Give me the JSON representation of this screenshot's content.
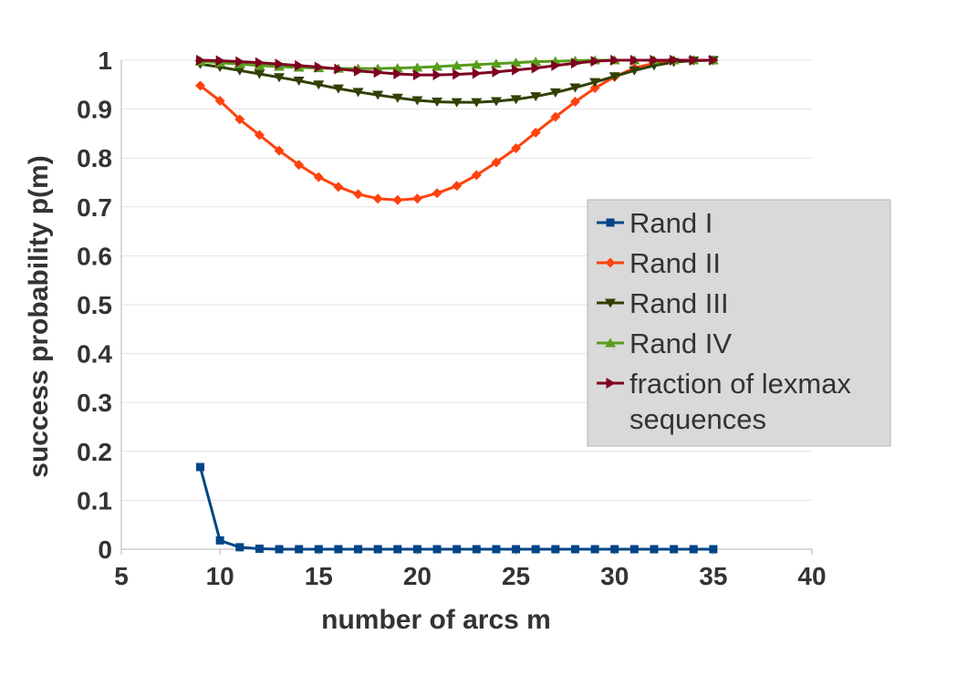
{
  "chart_data": {
    "type": "line",
    "xlabel": "number of arcs m",
    "ylabel": "success probability p(m)",
    "xlim": [
      5,
      40
    ],
    "ylim": [
      0,
      1
    ],
    "xticks": [
      5,
      10,
      15,
      20,
      25,
      30,
      35,
      40
    ],
    "yticks": [
      0,
      0.1,
      0.2,
      0.3,
      0.4,
      0.5,
      0.6,
      0.7,
      0.8,
      0.9,
      1
    ],
    "ytick_labels": [
      "0",
      "0.1",
      "0.2",
      "0.3",
      "0.4",
      "0.5",
      "0.6",
      "0.7",
      "0.8",
      "0.9",
      "1"
    ],
    "grid": true,
    "legend_position": "right",
    "x": [
      9,
      10,
      11,
      12,
      13,
      14,
      15,
      16,
      17,
      18,
      19,
      20,
      21,
      22,
      23,
      24,
      25,
      26,
      27,
      28,
      29,
      30,
      31,
      32,
      33,
      34,
      35
    ],
    "series": [
      {
        "name": "Rand I",
        "color": "#004586",
        "marker": "square",
        "values": [
          0.168,
          0.018,
          0.004,
          0.001,
          0,
          0,
          0,
          0,
          0,
          0,
          0,
          0,
          0,
          0,
          0,
          0,
          0,
          0,
          0,
          0,
          0,
          0,
          0,
          0,
          0,
          0,
          0
        ]
      },
      {
        "name": "Rand II",
        "color": "#ff420e",
        "marker": "diamond",
        "values": [
          0.948,
          0.917,
          0.879,
          0.847,
          0.815,
          0.786,
          0.761,
          0.741,
          0.726,
          0.717,
          0.714,
          0.717,
          0.728,
          0.743,
          0.765,
          0.791,
          0.82,
          0.852,
          0.884,
          0.915,
          0.943,
          0.966,
          0.984,
          0.994,
          0.999,
          1.0,
          1.0
        ]
      },
      {
        "name": "Rand III",
        "color": "#314004",
        "marker": "triangle-down",
        "values": [
          0.992,
          0.986,
          0.979,
          0.972,
          0.965,
          0.958,
          0.95,
          0.942,
          0.935,
          0.929,
          0.923,
          0.918,
          0.915,
          0.914,
          0.914,
          0.916,
          0.92,
          0.926,
          0.934,
          0.944,
          0.955,
          0.967,
          0.979,
          0.989,
          0.996,
          0.999,
          1.0
        ]
      },
      {
        "name": "Rand IV",
        "color": "#579d1c",
        "marker": "triangle-up",
        "values": [
          0.998,
          0.995,
          0.992,
          0.989,
          0.987,
          0.985,
          0.984,
          0.983,
          0.983,
          0.983,
          0.984,
          0.985,
          0.987,
          0.989,
          0.991,
          0.993,
          0.995,
          0.997,
          0.998,
          0.999,
          1.0,
          1.0,
          1.0,
          1.0,
          1.0,
          1.0,
          1.0
        ]
      },
      {
        "name": "fraction of lexmax sequences",
        "label_lines": [
          "fraction of lexmax",
          "sequences"
        ],
        "color": "#7e0021",
        "marker": "triangle-right",
        "values": [
          1.0,
          0.999,
          0.997,
          0.995,
          0.992,
          0.989,
          0.986,
          0.982,
          0.978,
          0.975,
          0.972,
          0.97,
          0.97,
          0.971,
          0.973,
          0.976,
          0.98,
          0.984,
          0.989,
          0.994,
          0.998,
          1.0,
          1.0,
          1.0,
          1.0,
          1.0,
          1.0
        ]
      }
    ]
  }
}
